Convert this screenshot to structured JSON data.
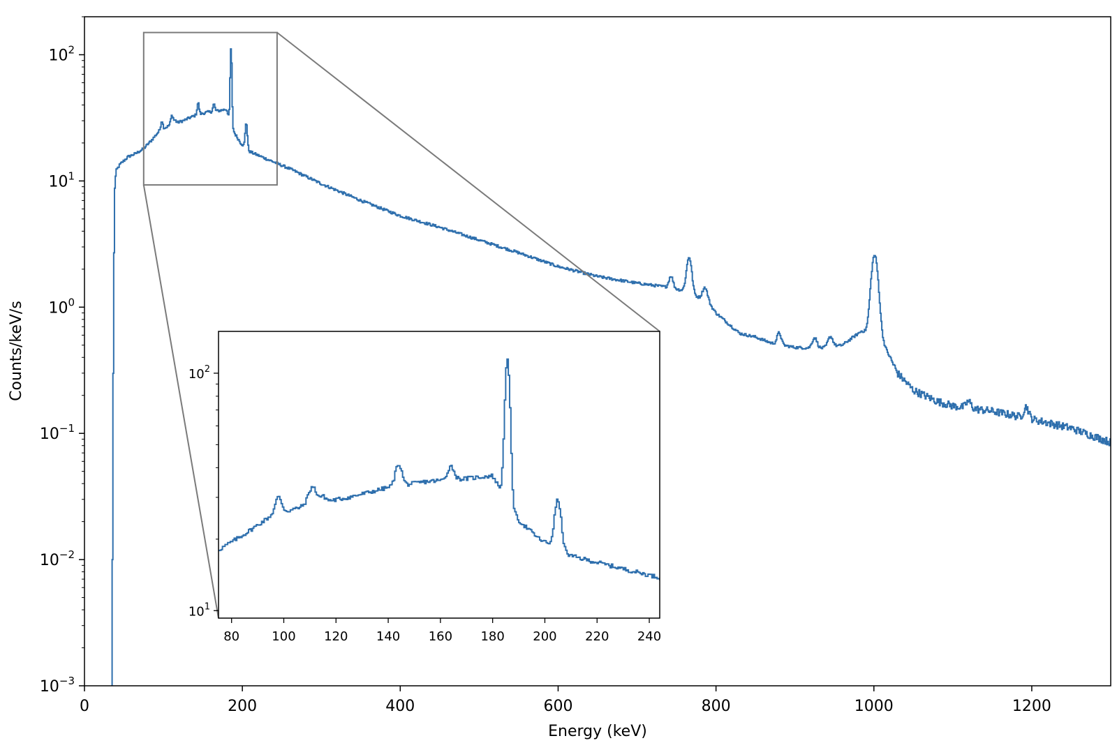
{
  "chart_data": {
    "type": "line",
    "title": "",
    "xlabel": "Energy (keV)",
    "ylabel": "Counts/keV/s",
    "xlim": [
      0,
      1300
    ],
    "ylim": [
      0.001,
      200
    ],
    "yscale": "log",
    "grid": false,
    "series_color": "#2e6fad",
    "x_ticks": [
      {
        "value": 0,
        "label": "0"
      },
      {
        "value": 200,
        "label": "200"
      },
      {
        "value": 400,
        "label": "400"
      },
      {
        "value": 600,
        "label": "600"
      },
      {
        "value": 800,
        "label": "800"
      },
      {
        "value": 1000,
        "label": "1000"
      },
      {
        "value": 1200,
        "label": "1200"
      }
    ],
    "y_ticks": [
      {
        "value": 0.001,
        "base": "10",
        "exp": "−3"
      },
      {
        "value": 0.01,
        "base": "10",
        "exp": "−2"
      },
      {
        "value": 0.1,
        "base": "10",
        "exp": "−1"
      },
      {
        "value": 1,
        "base": "10",
        "exp": "0"
      },
      {
        "value": 10,
        "base": "10",
        "exp": "1"
      },
      {
        "value": 100,
        "base": "10",
        "exp": "2"
      }
    ],
    "background": {
      "description_points": [
        [
          35,
          0.001
        ],
        [
          36,
          0.1
        ],
        [
          38,
          8
        ],
        [
          40,
          12
        ],
        [
          45,
          13.5
        ],
        [
          55,
          15.5
        ],
        [
          65,
          16.5
        ],
        [
          75,
          18
        ],
        [
          85,
          21
        ],
        [
          95,
          25
        ],
        [
          110,
          28
        ],
        [
          125,
          30
        ],
        [
          140,
          33
        ],
        [
          155,
          35
        ],
        [
          170,
          36
        ],
        [
          180,
          37
        ],
        [
          190,
          24
        ],
        [
          198,
          20
        ],
        [
          210,
          17
        ],
        [
          230,
          15
        ],
        [
          260,
          12.5
        ],
        [
          300,
          9.5
        ],
        [
          350,
          7
        ],
        [
          400,
          5.3
        ],
        [
          450,
          4.3
        ],
        [
          500,
          3.4
        ],
        [
          550,
          2.7
        ],
        [
          600,
          2.1
        ],
        [
          650,
          1.75
        ],
        [
          700,
          1.55
        ],
        [
          735,
          1.45
        ],
        [
          760,
          1.35
        ],
        [
          790,
          1.1
        ],
        [
          800,
          0.9
        ],
        [
          830,
          0.62
        ],
        [
          850,
          0.58
        ],
        [
          870,
          0.52
        ],
        [
          900,
          0.48
        ],
        [
          930,
          0.47
        ],
        [
          960,
          0.5
        ],
        [
          985,
          0.65
        ],
        [
          1010,
          0.55
        ],
        [
          1030,
          0.3
        ],
        [
          1050,
          0.22
        ],
        [
          1080,
          0.18
        ],
        [
          1100,
          0.165
        ],
        [
          1150,
          0.15
        ],
        [
          1200,
          0.13
        ],
        [
          1250,
          0.11
        ],
        [
          1300,
          0.085
        ]
      ]
    },
    "peaks": [
      {
        "energy": 98,
        "height": 4.5,
        "width": 1.2
      },
      {
        "energy": 111,
        "height": 5,
        "width": 1.5
      },
      {
        "energy": 115,
        "height": 1.5,
        "width": 1.2
      },
      {
        "energy": 144,
        "height": 8,
        "width": 1.2
      },
      {
        "energy": 164,
        "height": 5,
        "width": 1.2
      },
      {
        "energy": 185.7,
        "height": 84,
        "width": 0.9
      },
      {
        "energy": 205,
        "height": 11,
        "width": 1.2
      },
      {
        "energy": 743,
        "height": 0.35,
        "width": 2.5
      },
      {
        "energy": 766,
        "height": 1.2,
        "width": 3
      },
      {
        "energy": 786,
        "height": 0.3,
        "width": 3
      },
      {
        "energy": 880,
        "height": 0.12,
        "width": 2.5
      },
      {
        "energy": 925,
        "height": 0.1,
        "width": 3
      },
      {
        "energy": 945,
        "height": 0.1,
        "width": 3
      },
      {
        "energy": 1001,
        "height": 2.0,
        "width": 4
      },
      {
        "energy": 1120,
        "height": 0.02,
        "width": 3
      },
      {
        "energy": 1193,
        "height": 0.03,
        "width": 3
      }
    ],
    "inset": {
      "xlim": [
        75,
        244
      ],
      "ylim": [
        9.3,
        150
      ],
      "yscale": "log",
      "x_ticks": [
        {
          "value": 80,
          "label": "80"
        },
        {
          "value": 100,
          "label": "100"
        },
        {
          "value": 120,
          "label": "120"
        },
        {
          "value": 140,
          "label": "140"
        },
        {
          "value": 160,
          "label": "160"
        },
        {
          "value": 180,
          "label": "180"
        },
        {
          "value": 200,
          "label": "200"
        },
        {
          "value": 220,
          "label": "220"
        },
        {
          "value": 240,
          "label": "240"
        }
      ],
      "y_ticks": [
        {
          "value": 10,
          "base": "10",
          "exp": "1"
        },
        {
          "value": 100,
          "base": "10",
          "exp": "2"
        }
      ]
    }
  }
}
